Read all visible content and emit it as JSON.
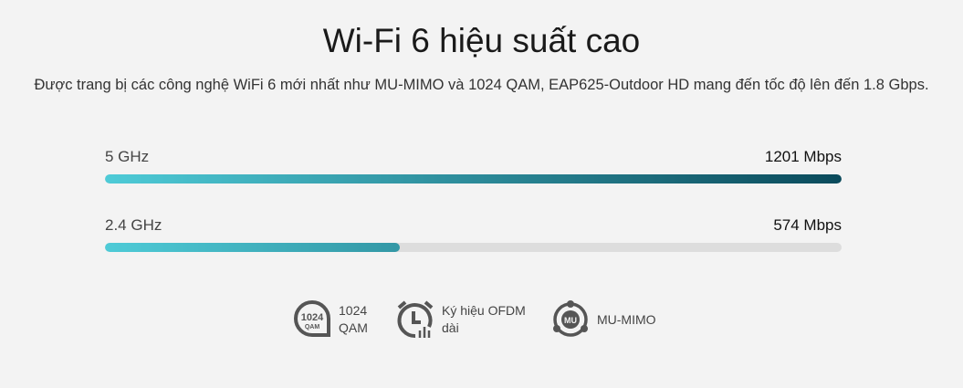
{
  "header": {
    "title": "Wi-Fi 6 hiệu suất cao",
    "subtitle": "Được trang bị các công nghệ WiFi 6 mới nhất như MU-MIMO và 1024 QAM, EAP625-Outdoor HD mang đến tốc độ lên đến 1.8 Gbps."
  },
  "bands": [
    {
      "label": "5 GHz",
      "value": "1201 Mbps",
      "fill_percent": 100
    },
    {
      "label": "2.4 GHz",
      "value": "574 Mbps",
      "fill_percent": 40
    }
  ],
  "colors": {
    "bar_start": "#4ecbd7",
    "bar_end": "#0a4a5b",
    "track": "#dddddd",
    "icon": "#555555"
  },
  "features": [
    {
      "icon": "1024-qam-icon",
      "line1": "1024",
      "line2": "QAM",
      "icon_text_top": "1024",
      "icon_text_bottom": "QAM"
    },
    {
      "icon": "alarm-clock-ofdm-icon",
      "line1": "Ký hiệu OFDM",
      "line2": "dài"
    },
    {
      "icon": "mu-mimo-icon",
      "line1": "MU-MIMO",
      "icon_text": "MU"
    }
  ]
}
